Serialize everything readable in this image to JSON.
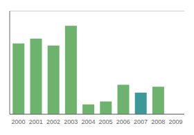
{
  "chart_data": {
    "type": "bar",
    "categories": [
      "2000",
      "2001",
      "2002",
      "2003",
      "2004",
      "2005",
      "2006",
      "2007",
      "2008",
      "2009"
    ],
    "values": [
      72,
      77,
      70,
      90,
      10,
      13,
      30,
      22,
      28,
      0
    ],
    "colors": [
      "#6db36d",
      "#6db36d",
      "#6db36d",
      "#6db36d",
      "#6db36d",
      "#6db36d",
      "#6db36d",
      "#3d9898",
      "#6db36d",
      "#6db36d"
    ],
    "ylim": [
      0,
      105
    ],
    "yticks": [
      0,
      21,
      42,
      63,
      84,
      105
    ],
    "grid": true,
    "tick_labels": "x"
  }
}
